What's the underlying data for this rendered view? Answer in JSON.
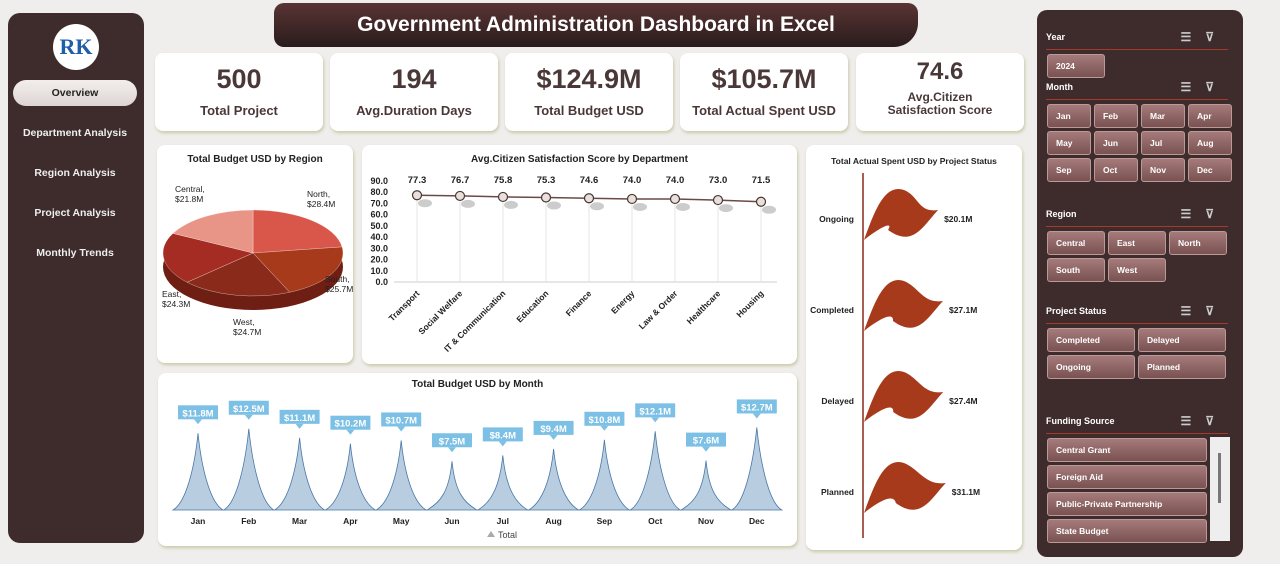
{
  "title": "Government Administration Dashboard in Excel",
  "logo_text": "RK",
  "nav": [
    "Overview",
    "Department Analysis",
    "Region Analysis",
    "Project Analysis",
    "Monthly Trends"
  ],
  "kpis": [
    {
      "value": "500",
      "label": "Total Project"
    },
    {
      "value": "194",
      "label": "Avg.Duration Days"
    },
    {
      "value": "$124.9M",
      "label": "Total Budget USD"
    },
    {
      "value": "$105.7M",
      "label": "Total Actual Spent USD"
    },
    {
      "value": "74.6",
      "label": "Avg.Citizen Satisfaction Score"
    }
  ],
  "chart_data": [
    {
      "type": "pie",
      "title": "Total Budget USD by Region",
      "categories": [
        "North",
        "South",
        "West",
        "East",
        "Central"
      ],
      "values": [
        28.4,
        25.7,
        24.7,
        24.3,
        21.8
      ],
      "labels": [
        "North,\n$28.4M",
        "South,\n$25.7M",
        "West,\n$24.7M",
        "East,\n$24.3M",
        "Central,\n$21.8M"
      ],
      "colors": [
        "#d9574a",
        "#a83a1c",
        "#8a2a1a",
        "#a52c22",
        "#e89487"
      ]
    },
    {
      "type": "line",
      "title": "Avg.Citizen Satisfaction Score by Department",
      "categories": [
        "Transport",
        "Social Welfare",
        "IT & Communication",
        "Education",
        "Finance",
        "Energy",
        "Law & Order",
        "Healthcare",
        "Housing"
      ],
      "values": [
        77.3,
        76.7,
        75.8,
        75.3,
        74.6,
        74.0,
        74.0,
        73.0,
        71.5
      ],
      "ylim": [
        0,
        90
      ],
      "yticks": [
        "0.0",
        "10.0",
        "20.0",
        "30.0",
        "40.0",
        "50.0",
        "60.0",
        "70.0",
        "80.0",
        "90.0"
      ]
    },
    {
      "type": "area",
      "title": "Total Budget USD by Month",
      "categories": [
        "Jan",
        "Feb",
        "Mar",
        "Apr",
        "May",
        "Jun",
        "Jul",
        "Aug",
        "Sep",
        "Oct",
        "Nov",
        "Dec"
      ],
      "values": [
        11.8,
        12.5,
        11.1,
        10.2,
        10.7,
        7.5,
        8.4,
        9.4,
        10.8,
        12.1,
        7.6,
        12.7
      ],
      "labels": [
        "$11.8M",
        "$12.5M",
        "$11.1M",
        "$10.2M",
        "$10.7M",
        "$7.5M",
        "$8.4M",
        "$9.4M",
        "$10.8M",
        "$12.1M",
        "$7.6M",
        "$12.7M"
      ],
      "legend": "Total",
      "legend_position": "bottom",
      "color": "#b8cde0"
    },
    {
      "type": "bar",
      "title": "Total Actual Spent USD by Project Status",
      "categories": [
        "Ongoing",
        "Completed",
        "Delayed",
        "Planned"
      ],
      "values": [
        20.1,
        27.1,
        27.4,
        31.1
      ],
      "labels": [
        "$20.1M",
        "$27.1M",
        "$27.4M",
        "$31.1M"
      ],
      "color": "#a83a1c"
    }
  ],
  "slicers": [
    {
      "title": "Year",
      "items": [
        "2024"
      ]
    },
    {
      "title": "Month",
      "items": [
        "Jan",
        "Feb",
        "Mar",
        "Apr",
        "May",
        "Jun",
        "Jul",
        "Aug",
        "Sep",
        "Oct",
        "Nov",
        "Dec"
      ]
    },
    {
      "title": "Region",
      "items": [
        "Central",
        "East",
        "North",
        "South",
        "West"
      ]
    },
    {
      "title": "Project Status",
      "items": [
        "Completed",
        "Delayed",
        "Ongoing",
        "Planned"
      ]
    },
    {
      "title": "Funding Source",
      "items": [
        "Central Grant",
        "Foreign Aid",
        "Public-Private Partnership",
        "State Budget"
      ]
    }
  ]
}
